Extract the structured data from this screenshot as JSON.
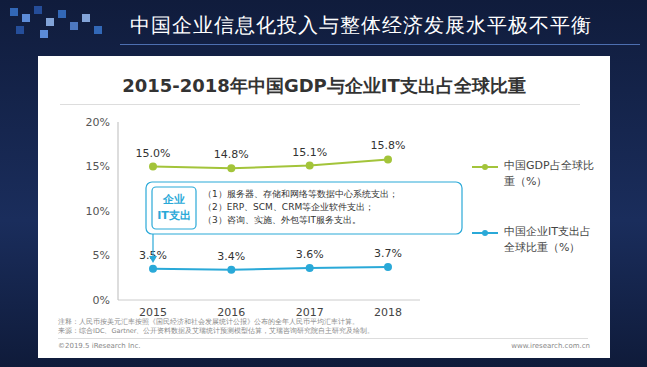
{
  "header": "中国企业信息化投入与整体经济发展水平极不平衡",
  "chart_data": {
    "type": "line",
    "title": "2015-2018年中国GDP与企业IT支出占全球比重",
    "categories": [
      "2015",
      "2016",
      "2017",
      "2018"
    ],
    "series": [
      {
        "name": "中国GDP占全球比重（%）",
        "color": "#a3c43a",
        "marker": "circle",
        "values": [
          15.0,
          14.8,
          15.1,
          15.8
        ],
        "value_labels": [
          "15.0%",
          "14.8%",
          "15.1%",
          "15.8%"
        ]
      },
      {
        "name": "中国企业IT支出占全球比重（%）",
        "color": "#2aa9d8",
        "marker": "circle",
        "values": [
          3.5,
          3.4,
          3.6,
          3.7
        ],
        "value_labels": [
          "3.5%",
          "3.4%",
          "3.6%",
          "3.7%"
        ]
      }
    ],
    "ylim": [
      0,
      20
    ],
    "yticks": [
      {
        "value": 0,
        "label": "0%"
      },
      {
        "value": 5,
        "label": "5%"
      },
      {
        "value": 10,
        "label": "10%"
      },
      {
        "value": 15,
        "label": "15%"
      },
      {
        "value": 20,
        "label": "20%"
      }
    ],
    "grid": false,
    "legend": "right",
    "data_labels": true,
    "annotation": {
      "label": [
        "企业",
        "IT支出"
      ],
      "lines": [
        "（1）服务器、存储和网络等数据中心系统支出；",
        "（2）ERP、SCM、CRM等企业软件支出；",
        "（3）咨询、实施、外包等IT服务支出。"
      ]
    },
    "notes": [
      "注释：人民币按美元汇率按照《国民经济和社会发展统计公报》公布的全年人民币平均汇率计算。",
      "来源：综合IDC、Gartner、公开资料数据及艾瑞统计预测模型估算，艾瑞咨询研究院自主研究及绘制。"
    ],
    "source_left": "©2019.5 iResearch Inc.",
    "source_right": "www.iresearch.com.cn"
  }
}
